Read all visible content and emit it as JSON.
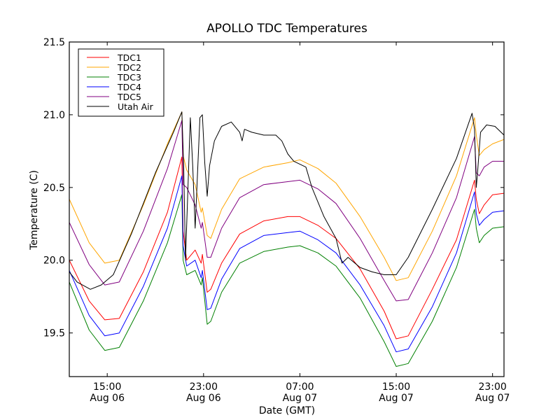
{
  "chart_data": {
    "type": "line",
    "title": "APOLLO TDC Temperatures",
    "xlabel": "Date (GMT)",
    "ylabel": "Temperature (C)",
    "xlim_hours_since_aug06_0000": [
      11.85,
      47.95
    ],
    "ylim": [
      19.2,
      21.5
    ],
    "grid": false,
    "legend_placement": "top-left",
    "x_ticks": [
      {
        "hours": 15,
        "line1": "15:00",
        "line2": "Aug 06"
      },
      {
        "hours": 23,
        "line1": "23:00",
        "line2": "Aug 06"
      },
      {
        "hours": 31,
        "line1": "07:00",
        "line2": "Aug 07"
      },
      {
        "hours": 39,
        "line1": "15:00",
        "line2": "Aug 07"
      },
      {
        "hours": 47,
        "line1": "23:00",
        "line2": "Aug 07"
      }
    ],
    "y_ticks": [
      {
        "value": 19.5,
        "label": "19.5"
      },
      {
        "value": 20.0,
        "label": "20.0"
      },
      {
        "value": 20.5,
        "label": "20.5"
      },
      {
        "value": 21.0,
        "label": "21.0"
      },
      {
        "value": 21.5,
        "label": "21.5"
      }
    ],
    "x_unit": "hours since Aug 06 00:00 GMT",
    "series": [
      {
        "name": "TDC1",
        "color": "#ff0000",
        "x": [
          11.85,
          13.5,
          14.8,
          16.0,
          18.0,
          20.0,
          21.2,
          21.3,
          21.6,
          22.3,
          22.8,
          22.9,
          23.3,
          23.6,
          24.5,
          26.0,
          28.0,
          30.0,
          31.0,
          32.5,
          34.0,
          36.0,
          38.0,
          39.0,
          40.0,
          42.0,
          44.0,
          45.5,
          45.65,
          45.9,
          46.3,
          47.0,
          47.95
        ],
        "y": [
          20.0,
          19.72,
          19.59,
          19.6,
          19.92,
          20.33,
          20.71,
          20.2,
          20.0,
          20.07,
          19.98,
          20.04,
          19.78,
          19.8,
          19.98,
          20.18,
          20.27,
          20.3,
          20.3,
          20.24,
          20.15,
          19.94,
          19.65,
          19.46,
          19.48,
          19.8,
          20.14,
          20.55,
          20.42,
          20.32,
          20.38,
          20.45,
          20.46
        ]
      },
      {
        "name": "TDC2",
        "color": "#ffa500",
        "x": [
          11.85,
          13.5,
          14.8,
          16.0,
          18.0,
          20.0,
          21.2,
          21.3,
          21.6,
          22.3,
          22.8,
          22.9,
          23.3,
          23.6,
          24.5,
          26.0,
          28.0,
          30.0,
          31.0,
          32.5,
          34.0,
          36.0,
          38.0,
          39.0,
          40.0,
          42.0,
          44.0,
          45.5,
          45.65,
          45.9,
          46.3,
          47.0,
          47.95
        ],
        "y": [
          20.42,
          20.12,
          19.98,
          20.0,
          20.38,
          20.8,
          21.02,
          20.72,
          20.62,
          20.52,
          20.33,
          20.36,
          20.17,
          20.15,
          20.35,
          20.56,
          20.64,
          20.67,
          20.69,
          20.63,
          20.53,
          20.3,
          20.02,
          19.86,
          19.88,
          20.2,
          20.58,
          20.98,
          20.86,
          20.72,
          20.76,
          20.8,
          20.83
        ]
      },
      {
        "name": "TDC3",
        "color": "#008000",
        "x": [
          11.85,
          13.5,
          14.8,
          16.0,
          18.0,
          20.0,
          21.2,
          21.3,
          21.6,
          22.3,
          22.8,
          22.9,
          23.3,
          23.6,
          24.5,
          26.0,
          28.0,
          30.0,
          31.0,
          32.5,
          34.0,
          36.0,
          38.0,
          39.0,
          40.0,
          42.0,
          44.0,
          45.5,
          45.65,
          45.9,
          46.3,
          47.0,
          47.95
        ],
        "y": [
          19.85,
          19.52,
          19.38,
          19.4,
          19.72,
          20.12,
          20.45,
          20.0,
          19.9,
          19.93,
          19.83,
          19.88,
          19.56,
          19.58,
          19.78,
          19.98,
          20.06,
          20.09,
          20.1,
          20.05,
          19.96,
          19.74,
          19.44,
          19.27,
          19.29,
          19.58,
          19.95,
          20.35,
          20.22,
          20.12,
          20.17,
          20.22,
          20.23
        ]
      },
      {
        "name": "TDC4",
        "color": "#0000ff",
        "x": [
          11.85,
          13.5,
          14.8,
          16.0,
          18.0,
          20.0,
          21.2,
          21.3,
          21.6,
          22.3,
          22.8,
          22.9,
          23.3,
          23.6,
          24.5,
          26.0,
          28.0,
          30.0,
          31.0,
          32.5,
          34.0,
          36.0,
          38.0,
          39.0,
          40.0,
          42.0,
          44.0,
          45.5,
          45.65,
          45.9,
          46.3,
          47.0,
          47.95
        ],
        "y": [
          19.93,
          19.62,
          19.48,
          19.5,
          19.82,
          20.22,
          20.58,
          20.1,
          19.96,
          20.0,
          19.88,
          19.93,
          19.66,
          19.67,
          19.87,
          20.08,
          20.17,
          20.19,
          20.2,
          20.14,
          20.05,
          19.83,
          19.55,
          19.37,
          19.39,
          19.68,
          20.05,
          20.47,
          20.32,
          20.24,
          20.28,
          20.33,
          20.34
        ]
      },
      {
        "name": "TDC5",
        "color": "#800080",
        "x": [
          11.85,
          13.5,
          14.8,
          16.0,
          18.0,
          20.0,
          21.2,
          21.3,
          21.6,
          22.3,
          22.8,
          22.9,
          23.3,
          23.6,
          24.5,
          26.0,
          28.0,
          30.0,
          31.0,
          32.5,
          34.0,
          36.0,
          38.0,
          39.0,
          40.0,
          42.0,
          44.0,
          45.5,
          45.65,
          45.9,
          46.3,
          47.0,
          47.95
        ],
        "y": [
          20.26,
          19.97,
          19.83,
          19.85,
          20.2,
          20.63,
          20.96,
          20.52,
          20.5,
          20.38,
          20.22,
          20.26,
          20.02,
          20.02,
          20.22,
          20.43,
          20.52,
          20.54,
          20.55,
          20.49,
          20.39,
          20.15,
          19.86,
          19.72,
          19.73,
          20.05,
          20.43,
          20.85,
          20.6,
          20.58,
          20.64,
          20.68,
          20.68
        ]
      },
      {
        "name": "Utah Air",
        "color": "#000000",
        "x": [
          11.85,
          12.5,
          13.6,
          14.5,
          15.5,
          17.0,
          19.0,
          20.5,
          21.2,
          21.35,
          21.5,
          21.9,
          22.1,
          22.3,
          22.7,
          22.9,
          23.1,
          23.3,
          23.5,
          23.9,
          24.5,
          25.3,
          26.0,
          26.2,
          26.4,
          27.0,
          28.0,
          29.0,
          29.5,
          30.0,
          30.5,
          31.5,
          32.0,
          33.0,
          34.0,
          34.5,
          35.0,
          36.0,
          37.0,
          38.0,
          39.0,
          40.0,
          42.0,
          44.0,
          45.3,
          45.5,
          45.65,
          45.75,
          46.0,
          46.5,
          47.2,
          47.95
        ],
        "y": [
          19.92,
          19.85,
          19.8,
          19.83,
          19.9,
          20.18,
          20.6,
          20.88,
          21.02,
          20.65,
          20.0,
          20.98,
          20.65,
          20.22,
          20.98,
          21.0,
          20.67,
          20.44,
          20.65,
          20.82,
          20.92,
          20.95,
          20.88,
          20.82,
          20.9,
          20.88,
          20.86,
          20.86,
          20.82,
          20.73,
          20.68,
          20.64,
          20.5,
          20.3,
          20.15,
          19.98,
          20.02,
          19.95,
          19.92,
          19.9,
          19.9,
          20.02,
          20.35,
          20.7,
          21.01,
          20.9,
          20.5,
          20.6,
          20.88,
          20.93,
          20.92,
          20.86
        ]
      }
    ]
  }
}
